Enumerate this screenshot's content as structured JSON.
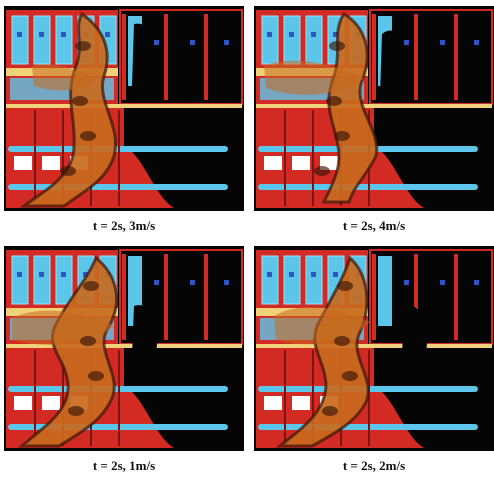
{
  "colors": {
    "wall_red": "#d42a24",
    "panel_cyan": "#5cc6ea",
    "marker_blue": "#2f55c8",
    "smoke_orange": "#c86a1e",
    "smoke_dark": "#3a1608",
    "floor_yellow": "#f0d27a",
    "void_black": "#050505",
    "white": "#ffffff"
  },
  "panels": [
    {
      "caption": "t = 2s, 3m/s"
    },
    {
      "caption": "t = 2s, 4m/s"
    },
    {
      "caption": "t = 2s, 1m/s"
    },
    {
      "caption": "t = 2s, 2m/s"
    }
  ]
}
